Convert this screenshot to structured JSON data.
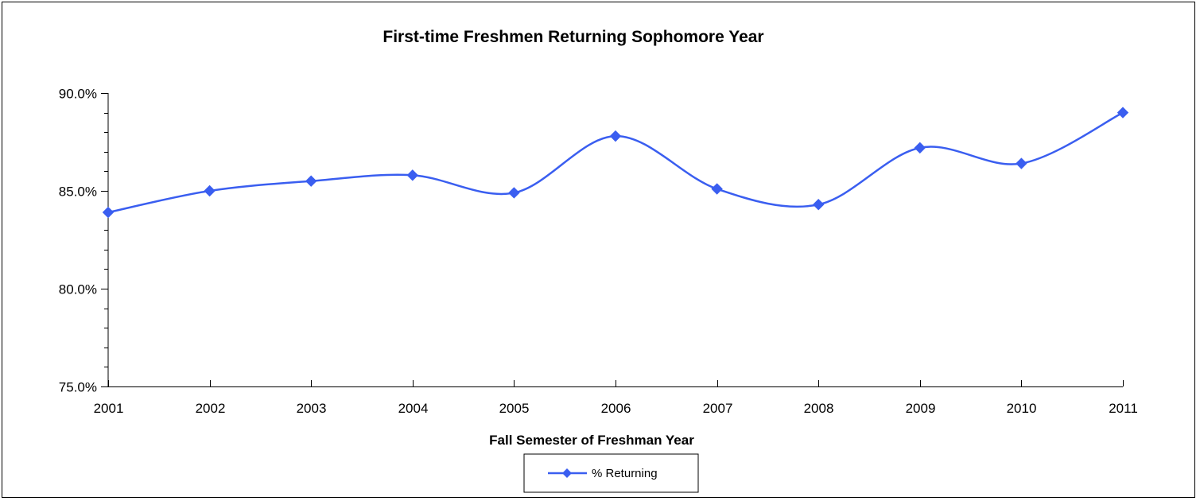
{
  "chart_data": {
    "type": "line",
    "title": "First-time Freshmen Returning Sophomore Year",
    "xlabel": "Fall Semester of Freshman Year",
    "ylabel": "",
    "categories": [
      "2001",
      "2002",
      "2003",
      "2004",
      "2005",
      "2006",
      "2007",
      "2008",
      "2009",
      "2010",
      "2011"
    ],
    "series": [
      {
        "name": "% Returning",
        "values": [
          83.9,
          85.0,
          85.5,
          85.8,
          84.9,
          87.8,
          85.1,
          84.3,
          87.2,
          86.4,
          89.0
        ],
        "color": "#3a5ef0",
        "marker": "diamond",
        "smooth": true
      }
    ],
    "ylim": [
      75.0,
      90.0
    ],
    "yticks": [
      75.0,
      80.0,
      85.0,
      90.0
    ],
    "ytick_labels": [
      "75.0%",
      "80.0%",
      "85.0%",
      "90.0%"
    ],
    "y_minor_step": 1.0,
    "grid": false,
    "legend": "bottom-center"
  }
}
